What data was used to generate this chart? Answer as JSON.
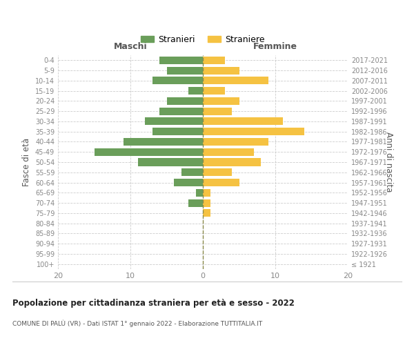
{
  "age_groups": [
    "100+",
    "95-99",
    "90-94",
    "85-89",
    "80-84",
    "75-79",
    "70-74",
    "65-69",
    "60-64",
    "55-59",
    "50-54",
    "45-49",
    "40-44",
    "35-39",
    "30-34",
    "25-29",
    "20-24",
    "15-19",
    "10-14",
    "5-9",
    "0-4"
  ],
  "birth_years": [
    "≤ 1921",
    "1922-1926",
    "1927-1931",
    "1932-1936",
    "1937-1941",
    "1942-1946",
    "1947-1951",
    "1952-1956",
    "1957-1961",
    "1962-1966",
    "1967-1971",
    "1972-1976",
    "1977-1981",
    "1982-1986",
    "1987-1991",
    "1992-1996",
    "1997-2001",
    "2002-2006",
    "2007-2011",
    "2012-2016",
    "2017-2021"
  ],
  "males": [
    0,
    0,
    0,
    0,
    0,
    0,
    2,
    1,
    4,
    3,
    9,
    15,
    11,
    7,
    8,
    6,
    5,
    2,
    7,
    5,
    6
  ],
  "females": [
    0,
    0,
    0,
    0,
    0,
    1,
    1,
    1,
    5,
    4,
    8,
    7,
    9,
    14,
    11,
    4,
    5,
    3,
    9,
    5,
    3
  ],
  "male_color": "#6a9e5a",
  "female_color": "#f5c242",
  "center_line_color": "#8a8a4a",
  "grid_color": "#cccccc",
  "title": "Popolazione per cittadinanza straniera per età e sesso - 2022",
  "subtitle": "COMUNE DI PALÙ (VR) - Dati ISTAT 1° gennaio 2022 - Elaborazione TUTTITALIA.IT",
  "xlabel_left": "Maschi",
  "xlabel_right": "Femmine",
  "ylabel_left": "Fasce di età",
  "ylabel_right": "Anni di nascita",
  "legend_male": "Stranieri",
  "legend_female": "Straniere",
  "xlim": 20,
  "background_color": "#ffffff"
}
